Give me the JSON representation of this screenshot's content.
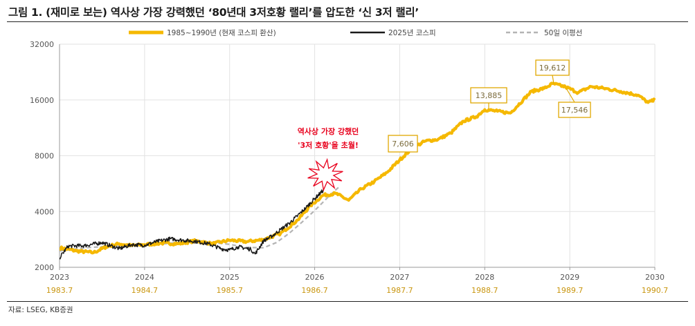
{
  "title": "그림 1. (재미로 보는) 역사상 가장 강력했던 ‘80년대 3저호황 랠리’를 압도한 ‘신 3저 랠리’",
  "source": "자료: LSEG, KB증권",
  "colors": {
    "gold": "#f5b800",
    "black": "#1a1a1a",
    "gray": "#b4b4b4",
    "red": "#e8001c",
    "callout_border": "#e0a800"
  },
  "chart_data": {
    "type": "line",
    "y_scale": "log",
    "ylim": [
      2000,
      32000
    ],
    "y_ticks": [
      "32000",
      "16000",
      "8000",
      "4000",
      "2000"
    ],
    "y_tick_values": [
      32000,
      16000,
      8000,
      4000,
      2000
    ],
    "x_range": [
      2023,
      2030
    ],
    "x_ticks_primary": [
      "2023",
      "2024",
      "2025",
      "2026",
      "2027",
      "2028",
      "2029",
      "2030"
    ],
    "x_ticks_secondary": [
      "1983.7",
      "1984.7",
      "1985.7",
      "1986.7",
      "1987.7",
      "1988.7",
      "1989.7",
      "1990.7"
    ],
    "legend": [
      {
        "label": "1985~1990년 (현재 코스피 환산)",
        "color": "#f5b800",
        "style": "solid"
      },
      {
        "label": "2025년 코스피",
        "color": "#1a1a1a",
        "style": "solid"
      },
      {
        "label": "50일 이평선",
        "color": "#b4b4b4",
        "style": "dashed"
      }
    ],
    "series": [
      {
        "name": "1985~1990년 (현재 코스피 환산)",
        "x": [
          2023.0,
          2023.2,
          2023.4,
          2023.55,
          2023.7,
          2023.85,
          2024.0,
          2024.2,
          2024.4,
          2024.6,
          2024.8,
          2025.0,
          2025.2,
          2025.4,
          2025.6,
          2025.8,
          2025.95,
          2026.1,
          2026.25,
          2026.4,
          2026.55,
          2026.7,
          2026.85,
          2027.0,
          2027.15,
          2027.3,
          2027.45,
          2027.6,
          2027.75,
          2027.9,
          2028.0,
          2028.15,
          2028.3,
          2028.45,
          2028.55,
          2028.7,
          2028.8,
          2028.95,
          2029.1,
          2029.25,
          2029.4,
          2029.6,
          2029.8,
          2029.92,
          2030.0
        ],
        "values": [
          2550,
          2450,
          2400,
          2580,
          2680,
          2620,
          2650,
          2700,
          2680,
          2780,
          2680,
          2800,
          2750,
          2820,
          3050,
          3600,
          4300,
          4900,
          5000,
          4600,
          5300,
          5800,
          6500,
          7600,
          8800,
          9600,
          9800,
          10600,
          12300,
          13000,
          14200,
          13900,
          13600,
          16000,
          17800,
          18500,
          19612,
          18800,
          17546,
          18900,
          18500,
          17800,
          17000,
          15500,
          16000
        ]
      },
      {
        "name": "2025년 코스피",
        "x": [
          2023.0,
          2023.1,
          2023.3,
          2023.5,
          2023.7,
          2023.85,
          2024.0,
          2024.15,
          2024.3,
          2024.45,
          2024.6,
          2024.75,
          2024.9,
          2025.0,
          2025.1,
          2025.25,
          2025.3,
          2025.4,
          2025.5,
          2025.6,
          2025.7,
          2025.8,
          2025.9,
          2026.0,
          2026.1,
          2026.15
        ],
        "values": [
          2250,
          2600,
          2620,
          2720,
          2520,
          2650,
          2630,
          2760,
          2850,
          2800,
          2760,
          2680,
          2520,
          2480,
          2580,
          2500,
          2360,
          2780,
          2950,
          3200,
          3450,
          3800,
          4200,
          4700,
          5200,
          6000
        ]
      },
      {
        "name": "50일 이평선",
        "x": [
          2023.0,
          2023.3,
          2023.6,
          2023.9,
          2024.2,
          2024.5,
          2024.8,
          2025.0,
          2025.2,
          2025.4,
          2025.55,
          2025.7,
          2025.85,
          2026.0,
          2026.1,
          2026.2,
          2026.3
        ],
        "values": [
          2450,
          2550,
          2600,
          2620,
          2670,
          2750,
          2720,
          2660,
          2560,
          2550,
          2720,
          3050,
          3500,
          4050,
          4500,
          5000,
          5500
        ]
      }
    ],
    "annotations": [
      {
        "text": "7,606",
        "x": 2027.02,
        "y": 7606
      },
      {
        "text": "13,885",
        "x": 2028.06,
        "y": 13885
      },
      {
        "text": "19,612",
        "x": 2028.8,
        "y": 19612
      },
      {
        "text": "17,546",
        "x": 2029.1,
        "y": 17546
      }
    ],
    "burst_label": [
      "역사상 가장 강했던",
      "'3저 호황'을 초월!"
    ]
  }
}
